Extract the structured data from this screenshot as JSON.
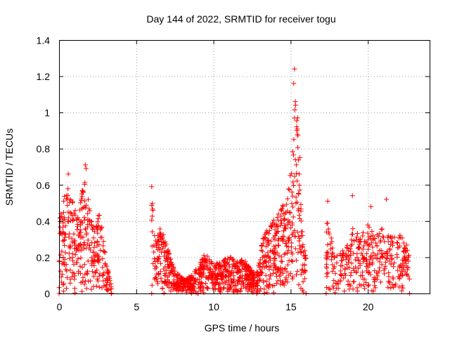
{
  "chart_data": {
    "type": "scatter",
    "title": "Day 144 of 2022, SRMTID for receiver togu",
    "xlabel": "GPS time / hours",
    "ylabel": "SRMTID / TECUs",
    "xlim": [
      0,
      24
    ],
    "ylim": [
      0,
      1.4
    ],
    "xticks": [
      0,
      5,
      10,
      15,
      20
    ],
    "yticks": [
      0,
      0.2,
      0.4,
      0.6,
      0.8,
      1.0,
      1.2,
      1.4
    ],
    "xtick_labels": [
      "0",
      "5",
      "10",
      "15",
      "20"
    ],
    "ytick_labels": [
      "0",
      "0.2",
      "0.4",
      "0.6",
      "0.8",
      "1",
      "1.2",
      "1.4"
    ],
    "grid": true,
    "marker": "plus",
    "series": [
      {
        "name": "SRMTID",
        "color": "#ff0000",
        "segments": [
          {
            "t0": 0.0,
            "t1": 3.4,
            "envelope": [
              [
                0.0,
                0.38
              ],
              [
                0.3,
                0.5
              ],
              [
                0.5,
                0.58
              ],
              [
                0.8,
                0.52
              ],
              [
                1.2,
                0.4
              ],
              [
                1.6,
                0.62
              ],
              [
                1.8,
                0.55
              ],
              [
                2.2,
                0.35
              ],
              [
                2.6,
                0.42
              ],
              [
                2.9,
                0.3
              ],
              [
                3.1,
                0.15
              ],
              [
                3.4,
                0.08
              ]
            ],
            "count": 320
          },
          {
            "t0": 6.0,
            "t1": 9.0,
            "envelope": [
              [
                6.0,
                0.5
              ],
              [
                6.3,
                0.3
              ],
              [
                6.6,
                0.35
              ],
              [
                7.0,
                0.25
              ],
              [
                7.5,
                0.12
              ],
              [
                8.0,
                0.08
              ],
              [
                8.5,
                0.09
              ],
              [
                9.0,
                0.14
              ]
            ],
            "count": 300
          },
          {
            "t0": 9.0,
            "t1": 12.8,
            "envelope": [
              [
                9.0,
                0.14
              ],
              [
                9.5,
                0.22
              ],
              [
                10.0,
                0.15
              ],
              [
                10.5,
                0.18
              ],
              [
                11.0,
                0.2
              ],
              [
                11.5,
                0.17
              ],
              [
                12.0,
                0.18
              ],
              [
                12.5,
                0.12
              ],
              [
                12.8,
                0.1
              ]
            ],
            "count": 380
          },
          {
            "t0": 12.8,
            "t1": 16.0,
            "envelope": [
              [
                12.8,
                0.12
              ],
              [
                13.2,
                0.3
              ],
              [
                13.6,
                0.35
              ],
              [
                14.0,
                0.4
              ],
              [
                14.4,
                0.45
              ],
              [
                14.8,
                0.55
              ],
              [
                15.1,
                0.7
              ],
              [
                15.3,
                1.05
              ],
              [
                15.5,
                0.8
              ],
              [
                15.7,
                0.4
              ],
              [
                16.0,
                0.2
              ]
            ],
            "count": 340
          },
          {
            "t0": 17.3,
            "t1": 22.7,
            "envelope": [
              [
                17.3,
                0.45
              ],
              [
                17.6,
                0.3
              ],
              [
                18.0,
                0.2
              ],
              [
                18.5,
                0.25
              ],
              [
                19.0,
                0.35
              ],
              [
                19.5,
                0.3
              ],
              [
                20.0,
                0.38
              ],
              [
                20.5,
                0.3
              ],
              [
                21.0,
                0.35
              ],
              [
                21.5,
                0.3
              ],
              [
                22.0,
                0.32
              ],
              [
                22.4,
                0.28
              ],
              [
                22.7,
                0.22
              ]
            ],
            "count": 360
          }
        ],
        "highlights": [
          {
            "x": 15.25,
            "y": 1.24
          },
          {
            "x": 15.2,
            "y": 1.16
          },
          {
            "x": 15.3,
            "y": 1.06
          },
          {
            "x": 15.32,
            "y": 1.04
          },
          {
            "x": 15.45,
            "y": 0.97
          },
          {
            "x": 15.4,
            "y": 0.9
          },
          {
            "x": 15.6,
            "y": 0.75
          },
          {
            "x": 15.55,
            "y": 0.66
          },
          {
            "x": 0.6,
            "y": 0.66
          },
          {
            "x": 1.7,
            "y": 0.71
          },
          {
            "x": 1.75,
            "y": 0.69
          },
          {
            "x": 6.0,
            "y": 0.59
          },
          {
            "x": 17.4,
            "y": 0.51
          },
          {
            "x": 19.0,
            "y": 0.54
          },
          {
            "x": 20.2,
            "y": 0.48
          },
          {
            "x": 21.2,
            "y": 0.52
          }
        ]
      }
    ]
  }
}
